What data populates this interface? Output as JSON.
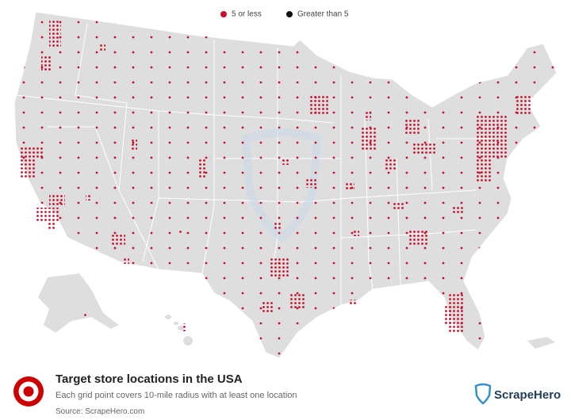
{
  "legend": {
    "items": [
      {
        "label": "5 or less",
        "color": "#c8102e"
      },
      {
        "label": "Greater than 5",
        "color": "#111111"
      }
    ]
  },
  "footer": {
    "title": "Target store locations in the USA",
    "subtitle": "Each grid point covers 10-mile radius with at least one location",
    "source": "Source: ScrapeHero.com"
  },
  "logo": {
    "text": "ScrapeHero"
  }
}
